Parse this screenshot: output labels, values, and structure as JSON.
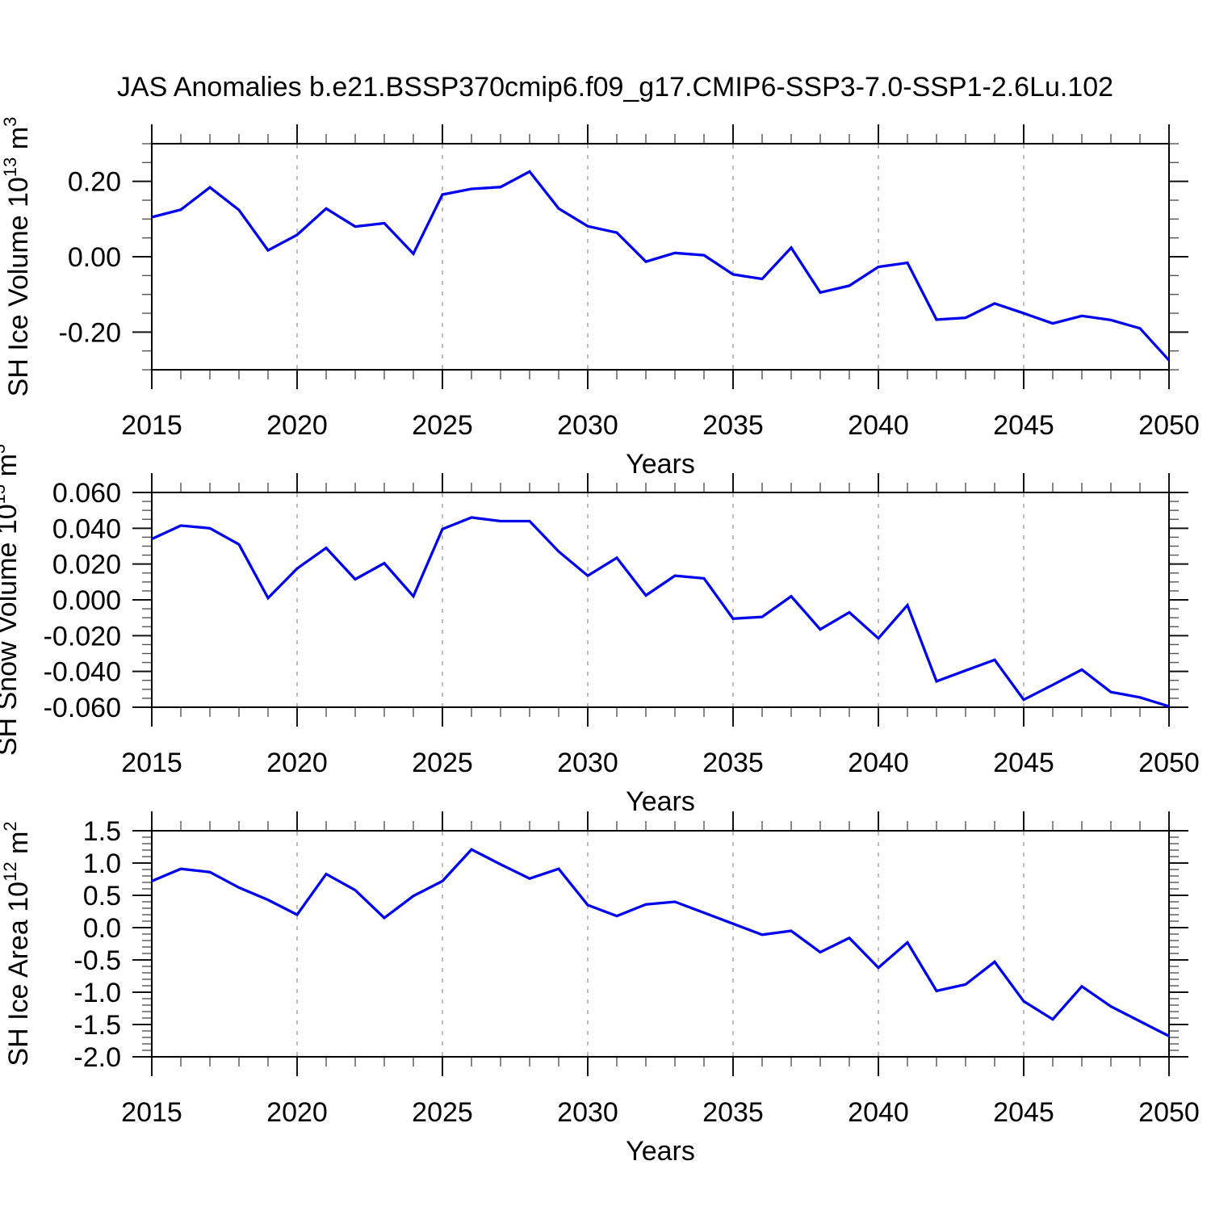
{
  "title": "JAS Anomalies b.e21.BSSP370cmip6.f09_g17.CMIP6-SSP3-7.0-SSP1-2.6Lu.102",
  "colors": {
    "background": "#ffffff",
    "line": "#0000f0",
    "grid": "#999999",
    "frame": "#000000",
    "tick_major": "#111111",
    "tick_minor": "#555555",
    "text": "#000000"
  },
  "x_axis": {
    "label": "Years",
    "start": 2015,
    "end": 2050,
    "major_step": 5,
    "minor_step": 1,
    "grid_years": [
      2020,
      2025,
      2030,
      2035,
      2040,
      2045
    ],
    "tick_labels": [
      "2015",
      "2020",
      "2025",
      "2030",
      "2035",
      "2040",
      "2045",
      "2050"
    ]
  },
  "chart_data": [
    {
      "id": "sh-ice-volume",
      "type": "line",
      "series_name": "SH Ice Volume anomaly",
      "ylabel_parts": {
        "prefix": "SH Ice Volume 10",
        "exp": "13",
        "unit": " m",
        "unit_exp": "3"
      },
      "xlabel": "Years",
      "ylim": [
        -0.3,
        0.3
      ],
      "y_minor_step": 0.05,
      "y_major_ticks": [
        {
          "value": 0.2,
          "label": "0.20"
        },
        {
          "value": 0.0,
          "label": "0.00"
        },
        {
          "value": -0.2,
          "label": "-0.20"
        }
      ],
      "x": [
        2015,
        2016,
        2017,
        2018,
        2019,
        2020,
        2021,
        2022,
        2023,
        2024,
        2025,
        2026,
        2027,
        2028,
        2029,
        2030,
        2031,
        2032,
        2033,
        2034,
        2035,
        2036,
        2037,
        2038,
        2039,
        2040,
        2041,
        2042,
        2043,
        2044,
        2045,
        2046,
        2047,
        2048,
        2049,
        2050
      ],
      "values": [
        0.105,
        0.125,
        0.184,
        0.124,
        0.017,
        0.058,
        0.128,
        0.08,
        0.089,
        0.008,
        0.165,
        0.18,
        0.185,
        0.226,
        0.128,
        0.081,
        0.064,
        -0.013,
        0.01,
        0.004,
        -0.047,
        -0.059,
        0.024,
        -0.095,
        -0.077,
        -0.027,
        -0.016,
        -0.167,
        -0.162,
        -0.124,
        -0.15,
        -0.177,
        -0.157,
        -0.168,
        -0.19,
        -0.275
      ]
    },
    {
      "id": "sh-snow-volume",
      "type": "line",
      "series_name": "SH Snow Volume anomaly",
      "ylabel_parts": {
        "prefix": "SH Snow Volume 10",
        "exp": "13",
        "unit": " m",
        "unit_exp": "3"
      },
      "xlabel": "Years",
      "ylim": [
        -0.06,
        0.06
      ],
      "y_minor_step": 0.005,
      "y_major_ticks": [
        {
          "value": 0.06,
          "label": "0.060"
        },
        {
          "value": 0.04,
          "label": "0.040"
        },
        {
          "value": 0.02,
          "label": "0.020"
        },
        {
          "value": 0.0,
          "label": "0.000"
        },
        {
          "value": -0.02,
          "label": "-0.020"
        },
        {
          "value": -0.04,
          "label": "-0.040"
        },
        {
          "value": -0.06,
          "label": "-0.060"
        }
      ],
      "x": [
        2015,
        2016,
        2017,
        2018,
        2019,
        2020,
        2021,
        2022,
        2023,
        2024,
        2025,
        2026,
        2027,
        2028,
        2029,
        2030,
        2031,
        2032,
        2033,
        2034,
        2035,
        2036,
        2037,
        2038,
        2039,
        2040,
        2041,
        2042,
        2043,
        2044,
        2045,
        2046,
        2047,
        2048,
        2049,
        2050
      ],
      "values": [
        0.034,
        0.0415,
        0.04,
        0.031,
        0.001,
        0.0175,
        0.029,
        0.0115,
        0.0205,
        0.002,
        0.0395,
        0.046,
        0.044,
        0.044,
        0.027,
        0.0135,
        0.0235,
        0.0025,
        0.0135,
        0.012,
        -0.0105,
        -0.0095,
        0.002,
        -0.0165,
        -0.007,
        -0.0215,
        -0.003,
        -0.0455,
        -0.0395,
        -0.0335,
        -0.0558,
        -0.0475,
        -0.039,
        -0.0515,
        -0.0545,
        -0.0595
      ]
    },
    {
      "id": "sh-ice-area",
      "type": "line",
      "series_name": "SH Ice Area anomaly",
      "ylabel_parts": {
        "prefix": "SH Ice Area 10",
        "exp": "12",
        "unit": " m",
        "unit_exp": "2"
      },
      "xlabel": "Years",
      "ylim": [
        -2.0,
        1.5
      ],
      "y_minor_step": 0.1,
      "y_major_ticks": [
        {
          "value": 1.5,
          "label": "1.5"
        },
        {
          "value": 1.0,
          "label": "1.0"
        },
        {
          "value": 0.5,
          "label": "0.5"
        },
        {
          "value": 0.0,
          "label": "0.0"
        },
        {
          "value": -0.5,
          "label": "-0.5"
        },
        {
          "value": -1.0,
          "label": "-1.0"
        },
        {
          "value": -1.5,
          "label": "-1.5"
        },
        {
          "value": -2.0,
          "label": "-2.0"
        }
      ],
      "x": [
        2015,
        2016,
        2017,
        2018,
        2019,
        2020,
        2021,
        2022,
        2023,
        2024,
        2025,
        2026,
        2027,
        2028,
        2029,
        2030,
        2031,
        2032,
        2033,
        2034,
        2035,
        2036,
        2037,
        2038,
        2039,
        2040,
        2041,
        2042,
        2043,
        2044,
        2045,
        2046,
        2047,
        2048,
        2049,
        2050
      ],
      "values": [
        0.72,
        0.91,
        0.86,
        0.62,
        0.43,
        0.2,
        0.83,
        0.58,
        0.15,
        0.49,
        0.72,
        1.21,
        0.98,
        0.76,
        0.91,
        0.35,
        0.18,
        0.36,
        0.4,
        0.23,
        0.06,
        -0.11,
        -0.05,
        -0.38,
        -0.16,
        -0.62,
        -0.23,
        -0.98,
        -0.88,
        -0.53,
        -1.14,
        -1.42,
        -0.91,
        -1.22,
        -1.45,
        -1.68
      ]
    }
  ]
}
